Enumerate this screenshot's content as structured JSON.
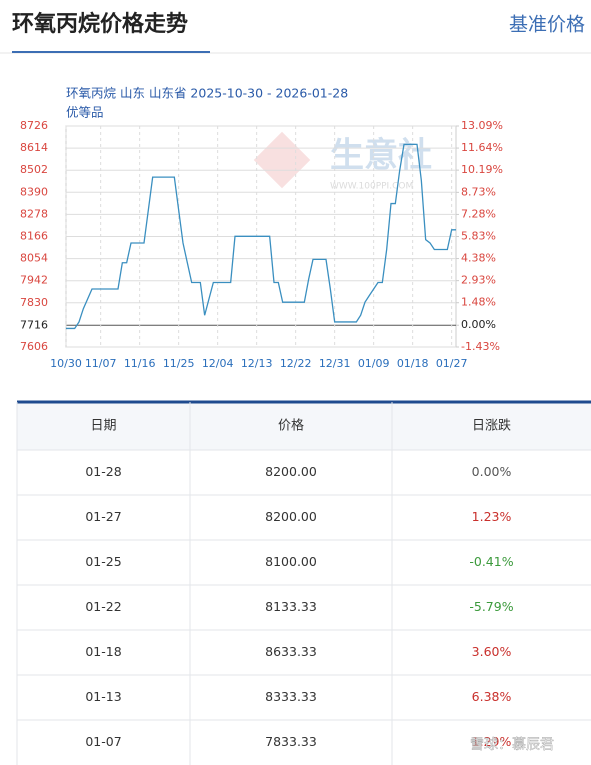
{
  "header": {
    "title": "环氧丙烷价格走势",
    "side_title": "基准价格"
  },
  "chart_data": {
    "type": "line",
    "title": "环氧丙烷 山东 山东省 2025-10-30 - 2026-01-28",
    "subtitle": "优等品",
    "watermark": {
      "brand": "生意社",
      "site": "WWW.100PPI.COM"
    },
    "categories": [
      "10/30",
      null,
      null,
      null,
      null,
      null,
      null,
      null,
      "11/07",
      null,
      null,
      null,
      null,
      null,
      null,
      null,
      null,
      "11/16",
      null,
      null,
      null,
      null,
      null,
      null,
      null,
      null,
      "11/25",
      null,
      null,
      null,
      null,
      null,
      null,
      null,
      null,
      "12/04",
      null,
      null,
      null,
      null,
      null,
      null,
      null,
      null,
      "12/13",
      null,
      null,
      null,
      null,
      null,
      null,
      null,
      null,
      "12/22",
      null,
      null,
      null,
      null,
      null,
      null,
      null,
      null,
      "12/31",
      null,
      null,
      null,
      null,
      null,
      null,
      null,
      null,
      "01/09",
      null,
      null,
      null,
      null,
      null,
      null,
      null,
      null,
      "01/18",
      null,
      null,
      null,
      null,
      null,
      null,
      null,
      null,
      "01/27",
      null
    ],
    "series": [
      {
        "color": "#3a8fc0",
        "values": [
          7700,
          7700,
          7700,
          7733,
          7800,
          7850,
          7900,
          7900,
          7900,
          7900,
          7900,
          7900,
          7900,
          8033,
          8033,
          8133,
          8133,
          8133,
          8133,
          8300,
          8467,
          8467,
          8467,
          8467,
          8467,
          8467,
          8300,
          8133,
          8033,
          7933,
          7933,
          7933,
          7767,
          7850,
          7933,
          7933,
          7933,
          7933,
          7933,
          8167,
          8167,
          8167,
          8167,
          8167,
          8167,
          8167,
          8167,
          8167,
          7933,
          7933,
          7833,
          7833,
          7833,
          7833,
          7833,
          7833,
          7950,
          8050,
          8050,
          8050,
          8050,
          7900,
          7733,
          7733,
          7733,
          7733,
          7733,
          7733,
          7767,
          7833.33,
          7867,
          7900,
          7933,
          7933,
          8100,
          8333.33,
          8333,
          8500,
          8633,
          8633,
          8633.33,
          8633,
          8450,
          8150,
          8133.33,
          8100,
          8100,
          8100,
          8100,
          8200,
          8200
        ]
      }
    ],
    "ylim": [
      7606,
      8726
    ],
    "yticks": [
      7606,
      7716,
      7830,
      7942,
      8054,
      8166,
      8278,
      8390,
      8502,
      8614,
      8726
    ],
    "y2lim": [
      -1.43,
      13.09
    ],
    "y2ticks": [
      {
        "value": -1.43,
        "label": "-1.43%"
      },
      {
        "value": 0,
        "label": "0.00%"
      },
      {
        "value": 1.48,
        "label": "1.48%"
      },
      {
        "value": 2.93,
        "label": "2.93%"
      },
      {
        "value": 4.38,
        "label": "4.38%"
      },
      {
        "value": 5.83,
        "label": "5.83%"
      },
      {
        "value": 7.28,
        "label": "7.28%"
      },
      {
        "value": 8.73,
        "label": "8.73%"
      },
      {
        "value": 10.19,
        "label": "10.19%"
      },
      {
        "value": 11.64,
        "label": "11.64%"
      },
      {
        "value": 13.09,
        "label": "13.09%"
      }
    ],
    "grid": true
  },
  "table": {
    "columns": [
      "日期",
      "价格",
      "日涨跌"
    ],
    "rows": [
      [
        "01-28",
        "8200.00",
        "0.00%"
      ],
      [
        "01-27",
        "8200.00",
        "1.23%"
      ],
      [
        "01-25",
        "8100.00",
        "-0.41%"
      ],
      [
        "01-22",
        "8133.33",
        "-5.79%"
      ],
      [
        "01-18",
        "8633.33",
        "3.60%"
      ],
      [
        "01-13",
        "8333.33",
        "6.38%"
      ],
      [
        "01-07",
        "7833.33",
        "1.29%"
      ]
    ]
  },
  "footer_watermark": "雪球：慕辰君"
}
